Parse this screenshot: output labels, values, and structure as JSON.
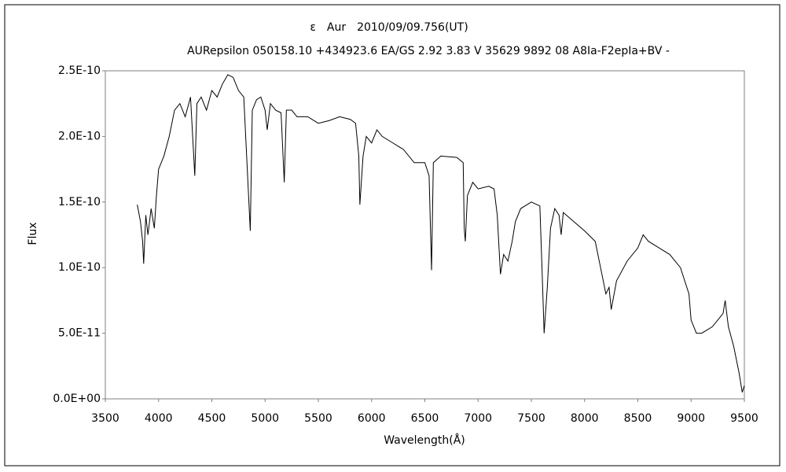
{
  "chart_data": {
    "type": "line",
    "title": "ε　Aur　2010/09/09.756(UT)",
    "subtitle": "AURepsilon 050158.10 +434923.6 EA/GS 2.92 3.83 V 35629 9892 08 A8Ia-F2epIa+BV -",
    "x_label": "Wavelength(Å)",
    "y_label": "Flux",
    "color": "#000000",
    "xlim": [
      3500,
      9500
    ],
    "xticks": [
      3500,
      4000,
      4500,
      5000,
      5500,
      6000,
      6500,
      7000,
      7500,
      8000,
      8500,
      9000,
      9500
    ],
    "ylim": [
      0,
      2.5e-10
    ],
    "yticks": [
      {
        "value": 0,
        "label": "0.0E+00"
      },
      {
        "value": 5e-11,
        "label": "5.0E-11"
      },
      {
        "value": 1e-10,
        "label": "1.0E-10"
      },
      {
        "value": 1.5e-10,
        "label": "1.5E-10"
      },
      {
        "value": 2e-10,
        "label": "2.0E-10"
      },
      {
        "value": 2.5e-10,
        "label": "2.5E-10"
      }
    ],
    "x": [
      3800,
      3830,
      3850,
      3860,
      3880,
      3900,
      3930,
      3960,
      3980,
      4000,
      4050,
      4100,
      4150,
      4200,
      4250,
      4300,
      4340,
      4360,
      4400,
      4450,
      4500,
      4550,
      4600,
      4650,
      4700,
      4750,
      4800,
      4861,
      4880,
      4920,
      4960,
      5000,
      5020,
      5050,
      5100,
      5150,
      5180,
      5200,
      5250,
      5300,
      5400,
      5500,
      5600,
      5700,
      5800,
      5850,
      5880,
      5890,
      5920,
      5950,
      6000,
      6050,
      6100,
      6200,
      6300,
      6400,
      6500,
      6540,
      6563,
      6580,
      6650,
      6800,
      6860,
      6870,
      6880,
      6900,
      6950,
      7000,
      7100,
      7150,
      7180,
      7210,
      7240,
      7280,
      7320,
      7350,
      7400,
      7500,
      7580,
      7600,
      7620,
      7650,
      7680,
      7720,
      7760,
      7780,
      7800,
      7900,
      8000,
      8100,
      8150,
      8200,
      8230,
      8250,
      8300,
      8400,
      8500,
      8550,
      8600,
      8700,
      8800,
      8900,
      8980,
      9000,
      9050,
      9100,
      9200,
      9300,
      9320,
      9350,
      9400,
      9450,
      9480,
      9500
    ],
    "values": [
      1.48e-10,
      1.35e-10,
      1.2e-10,
      1.03e-10,
      1.4e-10,
      1.25e-10,
      1.45e-10,
      1.3e-10,
      1.55e-10,
      1.75e-10,
      1.85e-10,
      2e-10,
      2.2e-10,
      2.25e-10,
      2.15e-10,
      2.3e-10,
      1.7e-10,
      2.25e-10,
      2.3e-10,
      2.2e-10,
      2.35e-10,
      2.3e-10,
      2.4e-10,
      2.47e-10,
      2.45e-10,
      2.35e-10,
      2.3e-10,
      1.28e-10,
      2.2e-10,
      2.28e-10,
      2.3e-10,
      2.2e-10,
      2.05e-10,
      2.25e-10,
      2.2e-10,
      2.18e-10,
      1.65e-10,
      2.2e-10,
      2.2e-10,
      2.15e-10,
      2.15e-10,
      2.1e-10,
      2.12e-10,
      2.15e-10,
      2.13e-10,
      2.1e-10,
      1.85e-10,
      1.48e-10,
      1.85e-10,
      2e-10,
      1.95e-10,
      2.05e-10,
      2e-10,
      1.95e-10,
      1.9e-10,
      1.8e-10,
      1.8e-10,
      1.7e-10,
      9.8e-11,
      1.8e-10,
      1.85e-10,
      1.84e-10,
      1.8e-10,
      1.3e-10,
      1.2e-10,
      1.55e-10,
      1.65e-10,
      1.6e-10,
      1.62e-10,
      1.6e-10,
      1.4e-10,
      9.5e-11,
      1.1e-10,
      1.05e-10,
      1.2e-10,
      1.35e-10,
      1.45e-10,
      1.5e-10,
      1.47e-10,
      1e-10,
      5e-11,
      8.5e-11,
      1.3e-10,
      1.45e-10,
      1.4e-10,
      1.25e-10,
      1.42e-10,
      1.35e-10,
      1.28e-10,
      1.2e-10,
      1e-10,
      8e-11,
      8.5e-11,
      6.8e-11,
      9e-11,
      1.05e-10,
      1.15e-10,
      1.25e-10,
      1.2e-10,
      1.15e-10,
      1.1e-10,
      1e-10,
      8e-11,
      6e-11,
      5e-11,
      5e-11,
      5.5e-11,
      6.5e-11,
      7.5e-11,
      5.5e-11,
      4e-11,
      2e-11,
      5e-12,
      1e-11
    ]
  }
}
